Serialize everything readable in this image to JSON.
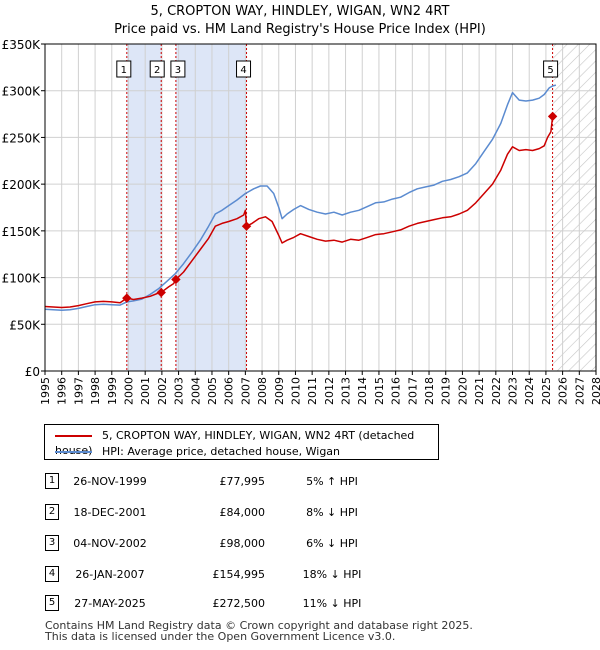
{
  "header": {
    "title_line1": "5, CROPTON WAY, HINDLEY, WIGAN, WN2 4RT",
    "title_line2": "Price paid vs. HM Land Registry's House Price Index (HPI)"
  },
  "colors": {
    "price_line": "#cc0000",
    "hpi_line": "#5b8bd0",
    "shade": "#dde6f7",
    "grid": "#d0d0d0"
  },
  "chart_data": {
    "type": "line",
    "xlim": [
      1995,
      2028
    ],
    "ylim": [
      0,
      350000
    ],
    "y_ticks": [
      {
        "value": 0,
        "label": "£0"
      },
      {
        "value": 50000,
        "label": "£50K"
      },
      {
        "value": 100000,
        "label": "£100K"
      },
      {
        "value": 150000,
        "label": "£150K"
      },
      {
        "value": 200000,
        "label": "£200K"
      },
      {
        "value": 250000,
        "label": "£250K"
      },
      {
        "value": 300000,
        "label": "£300K"
      },
      {
        "value": 350000,
        "label": "£350K"
      }
    ],
    "x_ticks": [
      "1995",
      "1996",
      "1997",
      "1998",
      "1999",
      "2000",
      "2001",
      "2002",
      "2003",
      "2004",
      "2005",
      "2006",
      "2007",
      "2008",
      "2009",
      "2010",
      "2011",
      "2012",
      "2013",
      "2014",
      "2015",
      "2016",
      "2017",
      "2018",
      "2019",
      "2020",
      "2021",
      "2022",
      "2023",
      "2024",
      "2025",
      "2026",
      "2027",
      "2028"
    ],
    "shaded_ranges": [
      [
        1999.9,
        2001.96
      ],
      [
        2002.84,
        2007.07
      ]
    ],
    "hatched_range": [
      2025.4,
      2028
    ],
    "sales": [
      {
        "label": "1",
        "x": 1999.9,
        "y": 77995
      },
      {
        "label": "2",
        "x": 2001.96,
        "y": 84000
      },
      {
        "label": "3",
        "x": 2002.84,
        "y": 98000
      },
      {
        "label": "4",
        "x": 2007.07,
        "y": 154995
      },
      {
        "label": "5",
        "x": 2025.4,
        "y": 272500
      }
    ],
    "series": [
      {
        "name": "5, CROPTON WAY, HINDLEY, WIGAN, WN2 4RT (detached house)",
        "color": "#cc0000",
        "points": [
          [
            1995,
            69000
          ],
          [
            1995.5,
            68500
          ],
          [
            1996,
            68000
          ],
          [
            1996.5,
            68500
          ],
          [
            1997,
            70000
          ],
          [
            1997.5,
            72000
          ],
          [
            1998,
            74000
          ],
          [
            1998.5,
            74500
          ],
          [
            1999,
            74000
          ],
          [
            1999.5,
            73000
          ],
          [
            1999.9,
            77995
          ],
          [
            2000.3,
            76500
          ],
          [
            2000.8,
            78000
          ],
          [
            2001.3,
            80000
          ],
          [
            2001.8,
            83500
          ],
          [
            2001.96,
            84000
          ],
          [
            2002.1,
            86000
          ],
          [
            2002.4,
            90000
          ],
          [
            2002.7,
            93500
          ],
          [
            2002.84,
            98000
          ],
          [
            2003.3,
            106000
          ],
          [
            2003.8,
            118000
          ],
          [
            2004.3,
            130000
          ],
          [
            2004.8,
            142000
          ],
          [
            2005.2,
            155000
          ],
          [
            2005.6,
            158000
          ],
          [
            2006,
            160000
          ],
          [
            2006.5,
            163000
          ],
          [
            2006.9,
            167000
          ],
          [
            2007.0,
            172000
          ],
          [
            2007.07,
            154995
          ],
          [
            2007.4,
            158000
          ],
          [
            2007.8,
            163000
          ],
          [
            2008.2,
            165000
          ],
          [
            2008.6,
            160000
          ],
          [
            2009.0,
            145000
          ],
          [
            2009.2,
            137000
          ],
          [
            2009.5,
            140000
          ],
          [
            2009.9,
            143000
          ],
          [
            2010.3,
            147000
          ],
          [
            2010.8,
            144000
          ],
          [
            2011.3,
            141000
          ],
          [
            2011.8,
            139000
          ],
          [
            2012.3,
            140000
          ],
          [
            2012.8,
            138000
          ],
          [
            2013.3,
            141000
          ],
          [
            2013.8,
            140000
          ],
          [
            2014.3,
            143000
          ],
          [
            2014.8,
            146000
          ],
          [
            2015.3,
            147000
          ],
          [
            2015.8,
            149000
          ],
          [
            2016.3,
            151000
          ],
          [
            2016.8,
            155000
          ],
          [
            2017.3,
            158000
          ],
          [
            2017.8,
            160000
          ],
          [
            2018.3,
            162000
          ],
          [
            2018.8,
            164000
          ],
          [
            2019.3,
            165000
          ],
          [
            2019.8,
            168000
          ],
          [
            2020.3,
            172000
          ],
          [
            2020.8,
            180000
          ],
          [
            2021.3,
            190000
          ],
          [
            2021.8,
            200000
          ],
          [
            2022.3,
            215000
          ],
          [
            2022.7,
            232000
          ],
          [
            2023.0,
            240000
          ],
          [
            2023.4,
            236000
          ],
          [
            2023.8,
            237000
          ],
          [
            2024.2,
            236000
          ],
          [
            2024.6,
            238000
          ],
          [
            2024.9,
            241000
          ],
          [
            2025.1,
            250000
          ],
          [
            2025.3,
            256000
          ],
          [
            2025.4,
            272500
          ]
        ]
      },
      {
        "name": "HPI: Average price, detached house, Wigan",
        "color": "#5b8bd0",
        "points": [
          [
            1995,
            66000
          ],
          [
            1995.5,
            65500
          ],
          [
            1996,
            65000
          ],
          [
            1996.5,
            65500
          ],
          [
            1997,
            67000
          ],
          [
            1997.5,
            69000
          ],
          [
            1998,
            71000
          ],
          [
            1998.5,
            71500
          ],
          [
            1999,
            71000
          ],
          [
            1999.5,
            70500
          ],
          [
            1999.9,
            74000
          ],
          [
            2000.3,
            75000
          ],
          [
            2000.8,
            77000
          ],
          [
            2001.3,
            82000
          ],
          [
            2001.8,
            88000
          ],
          [
            2002.3,
            96000
          ],
          [
            2002.8,
            104000
          ],
          [
            2003.3,
            115000
          ],
          [
            2003.8,
            127000
          ],
          [
            2004.3,
            140000
          ],
          [
            2004.8,
            155000
          ],
          [
            2005.2,
            168000
          ],
          [
            2005.6,
            172000
          ],
          [
            2006.0,
            177000
          ],
          [
            2006.5,
            183000
          ],
          [
            2007.0,
            190000
          ],
          [
            2007.5,
            195000
          ],
          [
            2007.9,
            198000
          ],
          [
            2008.3,
            198000
          ],
          [
            2008.7,
            190000
          ],
          [
            2009.0,
            175000
          ],
          [
            2009.2,
            163000
          ],
          [
            2009.5,
            168000
          ],
          [
            2009.9,
            173000
          ],
          [
            2010.3,
            177000
          ],
          [
            2010.8,
            173000
          ],
          [
            2011.3,
            170000
          ],
          [
            2011.8,
            168000
          ],
          [
            2012.3,
            170000
          ],
          [
            2012.8,
            167000
          ],
          [
            2013.3,
            170000
          ],
          [
            2013.8,
            172000
          ],
          [
            2014.3,
            176000
          ],
          [
            2014.8,
            180000
          ],
          [
            2015.3,
            181000
          ],
          [
            2015.8,
            184000
          ],
          [
            2016.3,
            186000
          ],
          [
            2016.8,
            191000
          ],
          [
            2017.3,
            195000
          ],
          [
            2017.8,
            197000
          ],
          [
            2018.3,
            199000
          ],
          [
            2018.8,
            203000
          ],
          [
            2019.3,
            205000
          ],
          [
            2019.8,
            208000
          ],
          [
            2020.3,
            212000
          ],
          [
            2020.8,
            222000
          ],
          [
            2021.3,
            235000
          ],
          [
            2021.8,
            248000
          ],
          [
            2022.3,
            265000
          ],
          [
            2022.7,
            285000
          ],
          [
            2023.0,
            298000
          ],
          [
            2023.4,
            290000
          ],
          [
            2023.8,
            289000
          ],
          [
            2024.2,
            290000
          ],
          [
            2024.6,
            292000
          ],
          [
            2024.9,
            296000
          ],
          [
            2025.2,
            303000
          ],
          [
            2025.4,
            305000
          ],
          [
            2025.6,
            306000
          ]
        ]
      }
    ]
  },
  "legend": {
    "price_label": "5, CROPTON WAY, HINDLEY, WIGAN, WN2 4RT (detached house)",
    "hpi_label": "HPI: Average price, detached house, Wigan"
  },
  "sales_table": [
    {
      "num": "1",
      "date": "26-NOV-1999",
      "price": "£77,995",
      "hpi": "5% ↑ HPI"
    },
    {
      "num": "2",
      "date": "18-DEC-2001",
      "price": "£84,000",
      "hpi": "8% ↓ HPI"
    },
    {
      "num": "3",
      "date": "04-NOV-2002",
      "price": "£98,000",
      "hpi": "6% ↓ HPI"
    },
    {
      "num": "4",
      "date": "26-JAN-2007",
      "price": "£154,995",
      "hpi": "18% ↓ HPI"
    },
    {
      "num": "5",
      "date": "27-MAY-2025",
      "price": "£272,500",
      "hpi": "11% ↓ HPI"
    }
  ],
  "footer": {
    "line1": "Contains HM Land Registry data © Crown copyright and database right 2025.",
    "line2": "This data is licensed under the Open Government Licence v3.0."
  }
}
